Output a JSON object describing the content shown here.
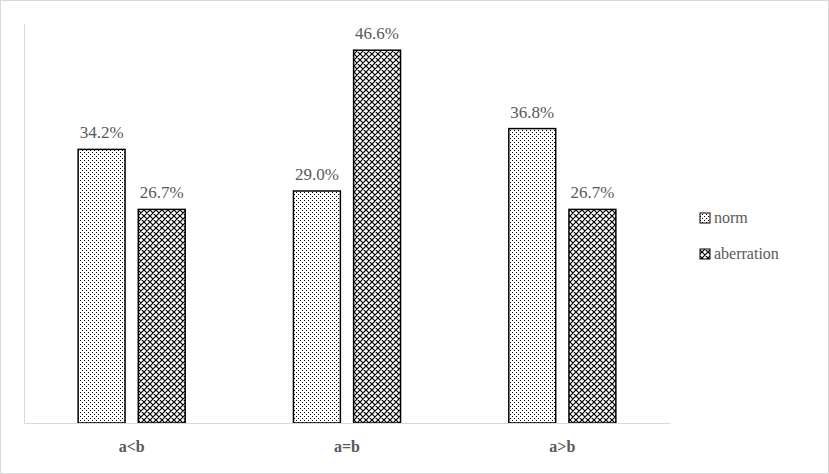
{
  "chart_data": {
    "type": "bar",
    "categories": [
      "a<b",
      "a=b",
      "a>b"
    ],
    "series": [
      {
        "name": "norm",
        "color": "#000000",
        "values": [
          34.2,
          29.0,
          36.8
        ],
        "value_labels": [
          "34.2%",
          "29.0%",
          "36.8%"
        ]
      },
      {
        "name": "aberration",
        "color": "#000000",
        "values": [
          26.7,
          46.6,
          26.7
        ],
        "value_labels": [
          "26.7%",
          "46.6%",
          "26.7%"
        ]
      }
    ],
    "ylim": [
      0,
      50
    ],
    "yticks": [],
    "grid": false,
    "legend": "right",
    "data_labels": true,
    "tick_labels": "x"
  }
}
